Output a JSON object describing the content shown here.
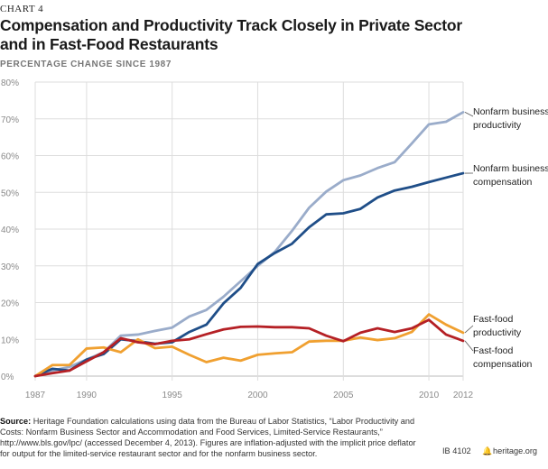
{
  "header": {
    "chart_number": "CHART 4",
    "title_line1": "Compensation and Productivity Track Closely in Private Sector",
    "title_line2": "and in Fast-Food Restaurants",
    "subtitle": "PERCENTAGE CHANGE SINCE 1987"
  },
  "footer": {
    "source_label": "Source:",
    "source_text": "Heritage Foundation calculations using data from the Bureau of Labor Statistics, “Labor Productivity and Costs: Nonfarm Business Sector and Accommodation and Food Services, Limited-Service Restaurants,” http://www.bls.gov/lpc/ (accessed December 4, 2013). Figures are inflation-adjusted with the implicit price deflator for output for the limited-service restaurant sector and for the nonfarm business sector.",
    "id": "IB 4102",
    "site": "heritage.org",
    "bell_icon": "bell-icon"
  },
  "chart_data": {
    "type": "line",
    "title": "Compensation and Productivity Track Closely in Private Sector and in Fast-Food Restaurants",
    "ylabel": "PERCENTAGE CHANGE SINCE 1987",
    "xlim": [
      1987,
      2012
    ],
    "ylim": [
      0,
      80
    ],
    "x_ticks": [
      "1987",
      "1990",
      "1995",
      "2000",
      "2005",
      "2010",
      "2012"
    ],
    "y_ticks": [
      "0%",
      "10%",
      "20%",
      "30%",
      "40%",
      "50%",
      "60%",
      "70%",
      "80%"
    ],
    "grid": true,
    "x": [
      1987,
      1988,
      1989,
      1990,
      1991,
      1992,
      1993,
      1994,
      1995,
      1996,
      1997,
      1998,
      1999,
      2000,
      2001,
      2002,
      2003,
      2004,
      2005,
      2006,
      2007,
      2008,
      2009,
      2010,
      2011,
      2012
    ],
    "series": [
      {
        "name": "Nonfarm business productivity",
        "label_lines": [
          "Nonfarm business",
          "productivity"
        ],
        "color": "#9aacca",
        "values": [
          0,
          1.5,
          2.5,
          4.5,
          6.5,
          11,
          11.3,
          12.3,
          13.2,
          16.2,
          18,
          21.6,
          25.8,
          30,
          33.8,
          39.5,
          45.8,
          50.2,
          53.3,
          54.6,
          56.6,
          58.2,
          63.3,
          68.5,
          69.2,
          71.8
        ]
      },
      {
        "name": "Nonfarm business compensation",
        "label_lines": [
          "Nonfarm business",
          "compensation"
        ],
        "color": "#1f4e88",
        "values": [
          0,
          2,
          1.5,
          4.5,
          6,
          10,
          9.5,
          8.8,
          9.2,
          12,
          14,
          19.8,
          24,
          30.5,
          33.5,
          36,
          40.5,
          44,
          44.3,
          45.5,
          48.6,
          50.5,
          51.5,
          52.8,
          54,
          55.2
        ]
      },
      {
        "name": "Fast-food productivity",
        "label_lines": [
          "Fast-food",
          "productivity"
        ],
        "color": "#f0a030",
        "values": [
          0,
          3,
          3,
          7.5,
          7.8,
          6.5,
          10,
          7.6,
          8,
          5.8,
          3.8,
          5,
          4.2,
          5.8,
          6.2,
          6.5,
          9.4,
          9.6,
          9.6,
          10.5,
          9.8,
          10.3,
          12,
          16.8,
          14,
          11.8
        ]
      },
      {
        "name": "Fast-food compensation",
        "label_lines": [
          "Fast-food",
          "compensation"
        ],
        "color": "#b52025",
        "values": [
          0,
          0.8,
          1.5,
          4,
          6.5,
          10.3,
          9.2,
          8.7,
          9.6,
          10,
          11.4,
          12.7,
          13.4,
          13.5,
          13.3,
          13.3,
          13,
          11,
          9.5,
          11.8,
          13,
          12,
          13,
          15.3,
          11.3,
          9.6
        ]
      }
    ]
  }
}
